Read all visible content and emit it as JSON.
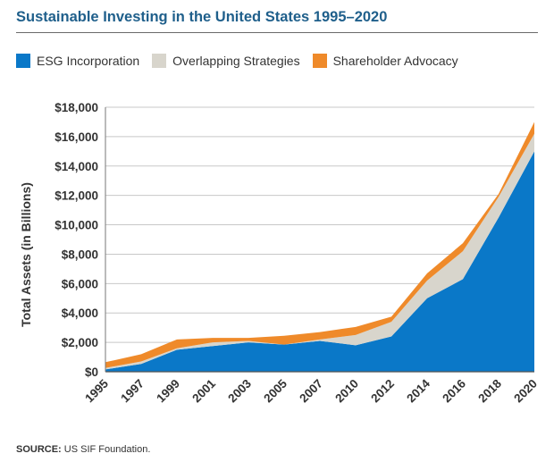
{
  "title": "Sustainable Investing in the United States 1995–2020",
  "source_label": "SOURCE:",
  "source_text": "US SIF Foundation.",
  "colors": {
    "esg": "#0a78c8",
    "overlap": "#d8d5cc",
    "advocacy": "#ef8a2a"
  },
  "chart_data": {
    "type": "area",
    "stacked": true,
    "title": "Sustainable Investing in the United States 1995–2020",
    "ylabel": "Total Assets (in Billions)",
    "xlabel": "",
    "x": [
      "1995",
      "1997",
      "1999",
      "2001",
      "2003",
      "2005",
      "2007",
      "2010",
      "2012",
      "2014",
      "2016",
      "2018",
      "2020"
    ],
    "ylim": [
      0,
      18000
    ],
    "yticks": [
      0,
      2000,
      4000,
      6000,
      8000,
      10000,
      12000,
      14000,
      16000,
      18000
    ],
    "ytick_labels": [
      "$0",
      "$2,000",
      "$4,000",
      "$6,000",
      "$8,000",
      "$10,000",
      "$12,000",
      "$14,000",
      "$16,000",
      "$18,000"
    ],
    "grid": true,
    "legend_position": "top",
    "series": [
      {
        "name": "ESG Incorporation",
        "values": [
          160,
          530,
          1500,
          1750,
          2000,
          1850,
          2100,
          1800,
          2400,
          5000,
          6300,
          10500,
          15000
        ]
      },
      {
        "name": "Overlapping Strategies",
        "values": [
          100,
          170,
          100,
          250,
          100,
          0,
          100,
          700,
          1000,
          1200,
          1900,
          1400,
          1200
        ]
      },
      {
        "name": "Shareholder Advocacy",
        "values": [
          390,
          490,
          600,
          300,
          200,
          600,
          500,
          550,
          350,
          500,
          550,
          200,
          800
        ]
      }
    ]
  }
}
